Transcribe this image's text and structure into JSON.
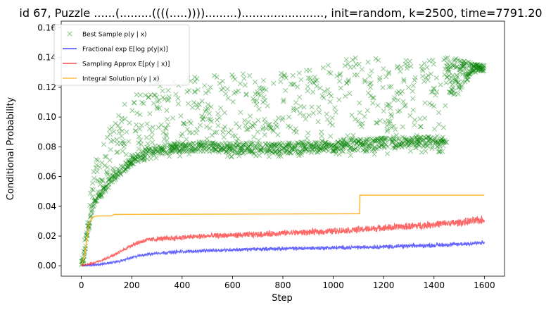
{
  "chart_data": {
    "type": "line",
    "title": "id 67, Puzzle ......(.........((((.....)))).........)......................., init=random, k=2500, time=7791.20",
    "xlabel": "Step",
    "ylabel": "Conditional Probability",
    "xlim": [
      -80,
      1680
    ],
    "ylim": [
      -0.007,
      0.1645
    ],
    "xticks": [
      0,
      200,
      400,
      600,
      800,
      1000,
      1200,
      1400,
      1600
    ],
    "xtick_labels": [
      "0",
      "200",
      "400",
      "600",
      "800",
      "1000",
      "1200",
      "1400",
      "1600"
    ],
    "yticks": [
      0.0,
      0.02,
      0.04,
      0.06,
      0.08,
      0.1,
      0.12,
      0.14,
      0.16
    ],
    "ytick_labels": [
      "0.00",
      "0.02",
      "0.04",
      "0.06",
      "0.08",
      "0.10",
      "0.12",
      "0.14",
      "0.16"
    ],
    "grid": false,
    "legend_position": "upper-left",
    "series": [
      {
        "name": "Best Sample p(y | x)",
        "kind": "scatter-x",
        "color": "#008000",
        "noisy": true,
        "x": [
          0,
          10,
          20,
          30,
          40,
          50,
          60,
          80,
          100,
          150,
          200,
          250,
          300,
          400,
          500,
          600,
          700,
          800,
          900,
          1000,
          1100,
          1200,
          1300,
          1400,
          1500,
          1550,
          1600
        ],
        "y_low": [
          0.0,
          0.003,
          0.015,
          0.025,
          0.032,
          0.038,
          0.042,
          0.045,
          0.05,
          0.058,
          0.065,
          0.07,
          0.072,
          0.074,
          0.074,
          0.073,
          0.073,
          0.073,
          0.073,
          0.073,
          0.074,
          0.075,
          0.076,
          0.076,
          0.078,
          0.12,
          0.125
        ],
        "y_high": [
          0.002,
          0.012,
          0.035,
          0.05,
          0.062,
          0.068,
          0.072,
          0.078,
          0.088,
          0.105,
          0.115,
          0.12,
          0.125,
          0.128,
          0.13,
          0.13,
          0.13,
          0.13,
          0.135,
          0.138,
          0.14,
          0.14,
          0.14,
          0.14,
          0.14,
          0.136,
          0.135
        ]
      },
      {
        "name": "Fractional exp E[log p(y|x)]",
        "kind": "line",
        "color": "#0000ff",
        "noisy": true,
        "x": [
          0,
          50,
          100,
          150,
          200,
          250,
          300,
          400,
          500,
          600,
          700,
          800,
          900,
          1000,
          1100,
          1200,
          1300,
          1400,
          1500,
          1600
        ],
        "y": [
          0.0,
          0.0005,
          0.0015,
          0.003,
          0.0055,
          0.0075,
          0.0085,
          0.0095,
          0.0102,
          0.0108,
          0.0112,
          0.0115,
          0.0118,
          0.0121,
          0.0124,
          0.0128,
          0.0132,
          0.0138,
          0.0145,
          0.0155
        ]
      },
      {
        "name": "Sampling Approx E[p(y | x)]",
        "kind": "line",
        "color": "#ff0000",
        "noisy": true,
        "x": [
          0,
          50,
          100,
          150,
          200,
          250,
          300,
          400,
          500,
          600,
          700,
          800,
          900,
          1000,
          1100,
          1200,
          1300,
          1400,
          1500,
          1600
        ],
        "y": [
          0.0,
          0.002,
          0.005,
          0.009,
          0.014,
          0.017,
          0.018,
          0.019,
          0.02,
          0.0205,
          0.021,
          0.022,
          0.0225,
          0.0233,
          0.0243,
          0.0255,
          0.0265,
          0.0278,
          0.029,
          0.031
        ]
      },
      {
        "name": "Integral Solution p(y | x)",
        "kind": "step",
        "color": "#ffa500",
        "noisy": false,
        "x": [
          0,
          10,
          20,
          30,
          40,
          50,
          60,
          120,
          130,
          1105,
          1106,
          1600
        ],
        "y": [
          0.0,
          0.005,
          0.015,
          0.028,
          0.032,
          0.033,
          0.0335,
          0.0335,
          0.0345,
          0.035,
          0.0475,
          0.0475
        ]
      }
    ]
  }
}
